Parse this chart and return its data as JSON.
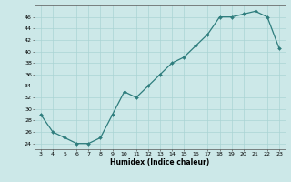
{
  "x": [
    3,
    4,
    5,
    6,
    7,
    8,
    9,
    10,
    11,
    12,
    13,
    14,
    15,
    16,
    17,
    18,
    19,
    20,
    21,
    22,
    23
  ],
  "y": [
    29,
    26,
    25,
    24,
    24,
    25,
    29,
    33,
    32,
    34,
    36,
    38,
    39,
    41,
    43,
    46,
    46,
    46.5,
    47,
    46,
    40.5
  ],
  "xlabel": "Humidex (Indice chaleur)",
  "xlim": [
    2.5,
    23.5
  ],
  "ylim": [
    23,
    48
  ],
  "yticks": [
    24,
    26,
    28,
    30,
    32,
    34,
    36,
    38,
    40,
    42,
    44,
    46
  ],
  "xticks": [
    3,
    4,
    5,
    6,
    7,
    8,
    9,
    10,
    11,
    12,
    13,
    14,
    15,
    16,
    17,
    18,
    19,
    20,
    21,
    22,
    23
  ],
  "line_color": "#2e7d7d",
  "marker_color": "#2e7d7d",
  "bg_color": "#cce8e8",
  "grid_color": "#aad4d4",
  "font_color": "#000000",
  "marker": "D",
  "marker_size": 2.0,
  "line_width": 0.9
}
